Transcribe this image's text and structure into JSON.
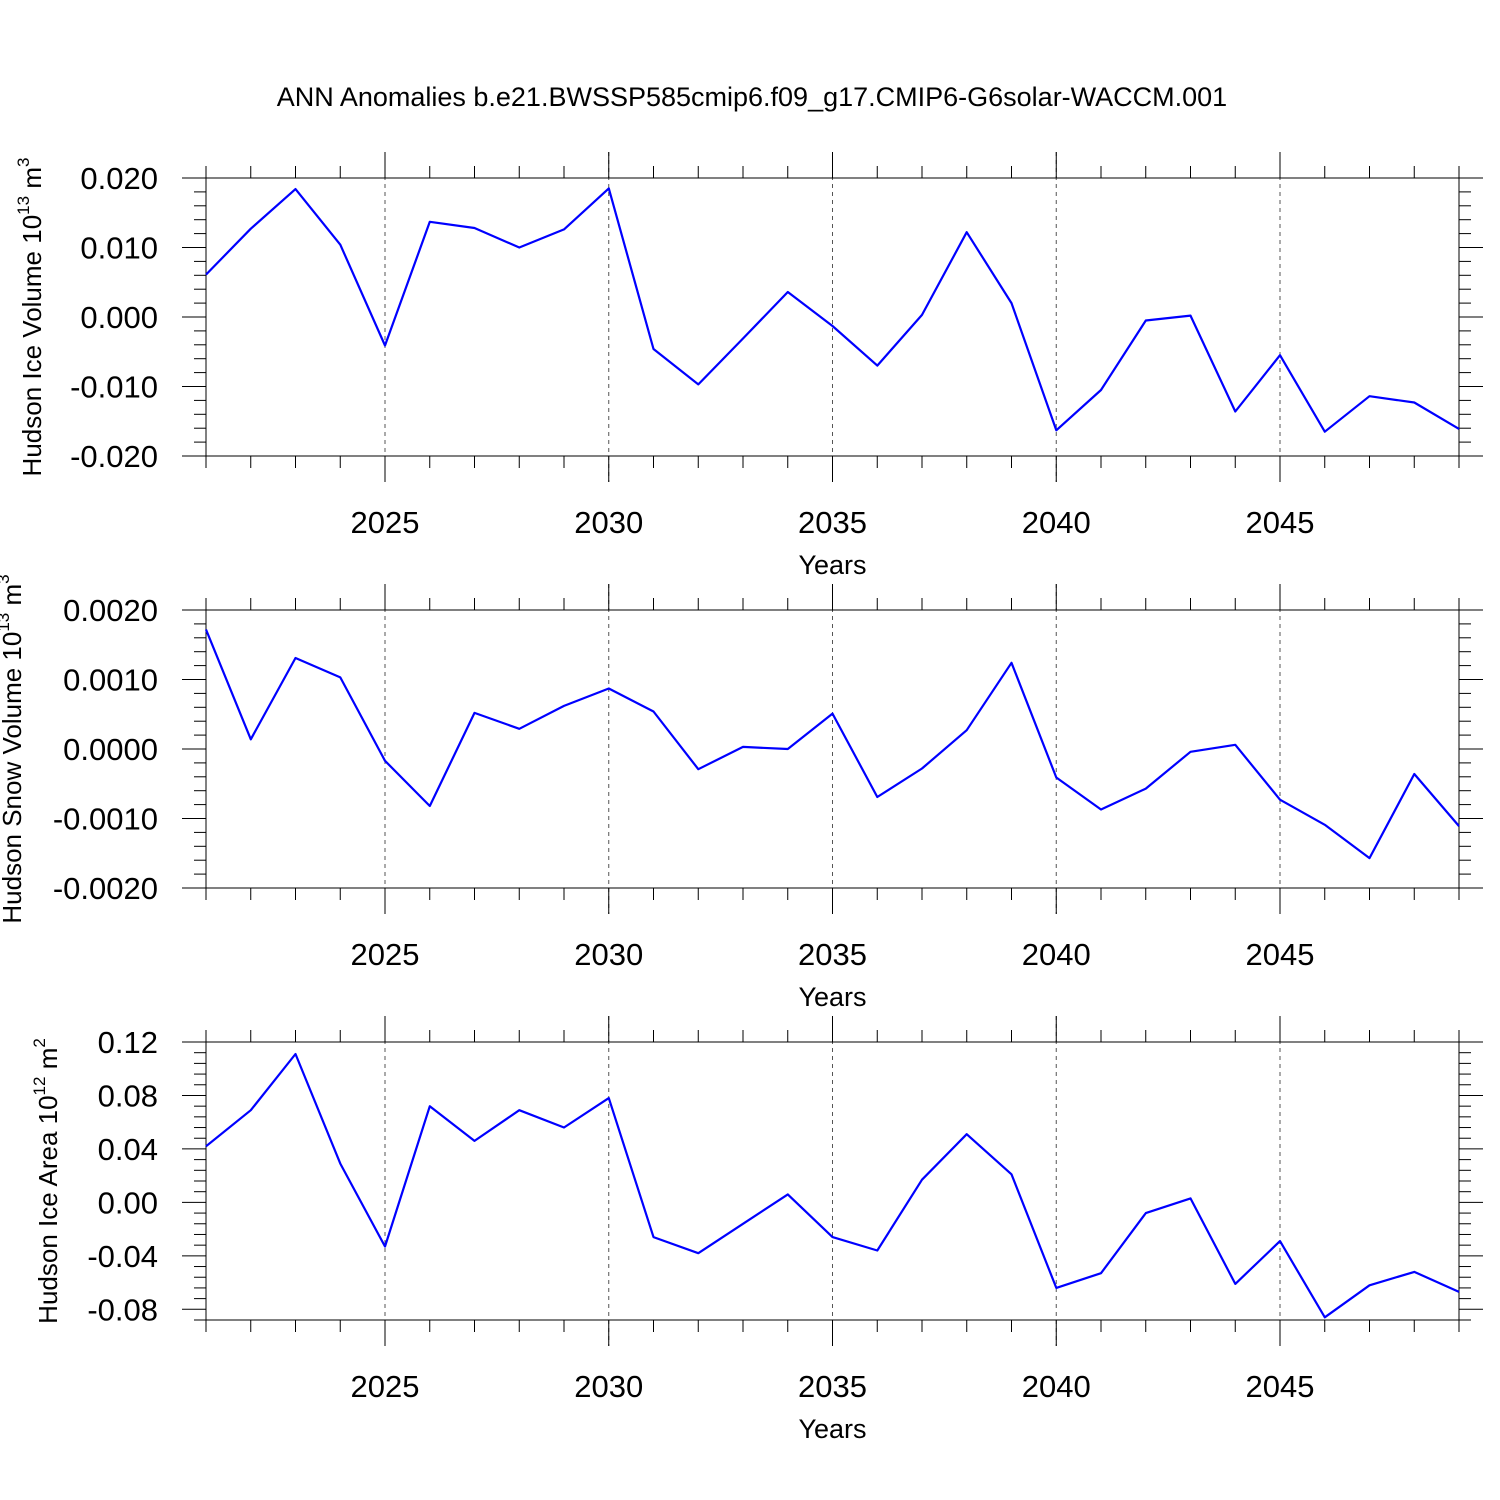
{
  "title": "ANN Anomalies b.e21.BWSSP585cmip6.f09_g17.CMIP6-G6solar-WACCM.001",
  "chart_data": [
    {
      "type": "line",
      "ylabel": "Hudson Ice Volume 10",
      "ylabel_exp": "13",
      "ylabel_unit": " m",
      "ylabel_unit_exp": "3",
      "xlabel": "Years",
      "xlim": [
        2021,
        2049
      ],
      "ylim": [
        -0.02,
        0.02
      ],
      "xticks": [
        2025,
        2030,
        2035,
        2040,
        2045
      ],
      "xtick_labels": [
        "2025",
        "2030",
        "2035",
        "2040",
        "2045"
      ],
      "yticks": [
        -0.02,
        -0.01,
        0.0,
        0.01,
        0.02
      ],
      "ytick_labels": [
        "-0.020",
        "-0.010",
        "0.000",
        "0.010",
        "0.020"
      ],
      "grid": "vertical dashed at major x ticks",
      "color": "#0000ff",
      "x": [
        2021,
        2022,
        2023,
        2024,
        2025,
        2026,
        2027,
        2028,
        2029,
        2030,
        2031,
        2032,
        2033,
        2034,
        2035,
        2036,
        2037,
        2038,
        2039,
        2040,
        2041,
        2042,
        2043,
        2044,
        2045,
        2046,
        2047,
        2048,
        2049
      ],
      "y": [
        0.0061,
        0.0127,
        0.0184,
        0.0104,
        -0.0041,
        0.0137,
        0.0128,
        0.01,
        0.0126,
        0.0185,
        -0.0046,
        -0.0097,
        -0.0031,
        0.0036,
        -0.0013,
        -0.007,
        0.0003,
        0.0122,
        0.002,
        -0.0163,
        -0.0105,
        -0.0005,
        0.0002,
        -0.0136,
        -0.0055,
        -0.0165,
        -0.0114,
        -0.0123,
        -0.0161
      ]
    },
    {
      "type": "line",
      "ylabel": "Hudson Snow Volume 10",
      "ylabel_exp": "13",
      "ylabel_unit": " m",
      "ylabel_unit_exp": "3",
      "xlabel": "Years",
      "xlim": [
        2021,
        2049
      ],
      "ylim": [
        -0.002,
        0.002
      ],
      "xticks": [
        2025,
        2030,
        2035,
        2040,
        2045
      ],
      "xtick_labels": [
        "2025",
        "2030",
        "2035",
        "2040",
        "2045"
      ],
      "yticks": [
        -0.002,
        -0.001,
        0.0,
        0.001,
        0.002
      ],
      "ytick_labels": [
        "-0.0020",
        "-0.0010",
        "0.0000",
        "0.0010",
        "0.0020"
      ],
      "grid": "vertical dashed at major x ticks",
      "color": "#0000ff",
      "x": [
        2021,
        2022,
        2023,
        2024,
        2025,
        2026,
        2027,
        2028,
        2029,
        2030,
        2031,
        2032,
        2033,
        2034,
        2035,
        2036,
        2037,
        2038,
        2039,
        2040,
        2041,
        2042,
        2043,
        2044,
        2045,
        2046,
        2047,
        2048,
        2049
      ],
      "y": [
        0.00172,
        0.00014,
        0.00131,
        0.00103,
        -0.00017,
        -0.00082,
        0.00052,
        0.00029,
        0.00062,
        0.00087,
        0.00054,
        -0.00029,
        3e-05,
        0.0,
        0.00051,
        -0.00069,
        -0.00028,
        0.00027,
        0.00124,
        -0.00041,
        -0.00087,
        -0.00057,
        -4e-05,
        6e-05,
        -0.00073,
        -0.00109,
        -0.00157,
        -0.00036,
        -0.00111
      ]
    },
    {
      "type": "line",
      "ylabel": "Hudson Ice Area 10",
      "ylabel_exp": "12",
      "ylabel_unit": " m",
      "ylabel_unit_exp": "2",
      "xlabel": "Years",
      "xlim": [
        2021,
        2049
      ],
      "ylim": [
        -0.088,
        0.12
      ],
      "xticks": [
        2025,
        2030,
        2035,
        2040,
        2045
      ],
      "xtick_labels": [
        "2025",
        "2030",
        "2035",
        "2040",
        "2045"
      ],
      "yticks": [
        -0.08,
        -0.04,
        0.0,
        0.04,
        0.08,
        0.12
      ],
      "ytick_labels": [
        "-0.08",
        "-0.04",
        "0.00",
        "0.04",
        "0.08",
        "0.12"
      ],
      "grid": "vertical dashed at major x ticks",
      "color": "#0000ff",
      "x": [
        2021,
        2022,
        2023,
        2024,
        2025,
        2026,
        2027,
        2028,
        2029,
        2030,
        2031,
        2032,
        2033,
        2034,
        2035,
        2036,
        2037,
        2038,
        2039,
        2040,
        2041,
        2042,
        2043,
        2044,
        2045,
        2046,
        2047,
        2048,
        2049
      ],
      "y": [
        0.042,
        0.069,
        0.111,
        0.029,
        -0.033,
        0.072,
        0.046,
        0.069,
        0.056,
        0.078,
        -0.026,
        -0.038,
        -0.016,
        0.006,
        -0.026,
        -0.036,
        0.017,
        0.051,
        0.021,
        -0.064,
        -0.053,
        -0.008,
        0.003,
        -0.061,
        -0.029,
        -0.086,
        -0.062,
        -0.052,
        -0.067
      ]
    }
  ]
}
